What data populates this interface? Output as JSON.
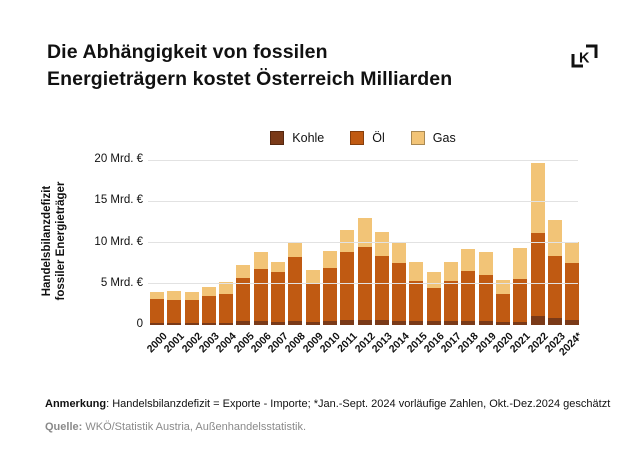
{
  "header": {
    "title_line1": "Die Abhängigkeit von fossilen",
    "title_line2": "Energieträgern kostet Österreich Milliarden",
    "logo_icon": "k-frame-logo",
    "logo_letter": "K"
  },
  "colors": {
    "kohle": "#7a3a18",
    "oel": "#c05a12",
    "gas": "#f2c477",
    "grid": "#e2e2e2",
    "text": "#111111",
    "muted": "#8a8a8a"
  },
  "chart_data": {
    "type": "bar",
    "stacked": true,
    "legend_position": "top",
    "grid": true,
    "unit": "Mrd. €",
    "ylim": [
      0,
      20
    ],
    "ylabel_line1": "Handelsbilanzdefizit",
    "ylabel_line2": "fossiler Energieträger",
    "categories": [
      "2000",
      "2001",
      "2002",
      "2003",
      "2004",
      "2005",
      "2006",
      "2007",
      "2008",
      "2009",
      "2010",
      "2011",
      "2012",
      "2013",
      "2014",
      "2015",
      "2016",
      "2017",
      "2018",
      "2019",
      "2020",
      "2021",
      "2022",
      "2023",
      "2024*"
    ],
    "series": [
      {
        "name": "Kohle",
        "color_key": "kohle",
        "values": [
          0.25,
          0.25,
          0.25,
          0.3,
          0.3,
          0.45,
          0.45,
          0.4,
          0.55,
          0.35,
          0.5,
          0.6,
          0.65,
          0.6,
          0.55,
          0.5,
          0.5,
          0.5,
          0.55,
          0.5,
          0.35,
          0.4,
          1.15,
          0.85,
          0.6
        ]
      },
      {
        "name": "Öl",
        "color_key": "oel",
        "values": [
          2.85,
          2.75,
          2.75,
          3.2,
          3.5,
          5.25,
          6.4,
          6.0,
          7.65,
          4.75,
          6.4,
          8.3,
          8.75,
          7.8,
          6.95,
          4.8,
          3.95,
          4.85,
          6.05,
          5.6,
          3.45,
          5.2,
          10.0,
          7.5,
          6.9
        ]
      },
      {
        "name": "Gas",
        "color_key": "gas",
        "values": [
          0.9,
          1.1,
          1.0,
          1.1,
          1.4,
          1.6,
          1.95,
          1.3,
          1.7,
          1.6,
          2.1,
          2.6,
          3.6,
          2.9,
          2.4,
          2.3,
          1.95,
          2.35,
          2.6,
          2.8,
          1.6,
          3.8,
          8.5,
          4.4,
          2.6
        ]
      }
    ],
    "yticks": [
      {
        "value": 20,
        "label": "20 Mrd. €"
      },
      {
        "value": 15,
        "label": "15 Mrd. €"
      },
      {
        "value": 10,
        "label": "10 Mrd. €"
      },
      {
        "value": 5,
        "label": "5 Mrd. €"
      },
      {
        "value": 0,
        "label": "0"
      }
    ]
  },
  "footer": {
    "note_label": "Anmerkung",
    "note_text": ": Handelsbilanzdefizit = Exporte - Importe;  *Jan.-Sept. 2024 vorläufige Zahlen, Okt.-Dez.2024 geschätzt",
    "source_label": "Quelle:",
    "source_text": " WKÖ/Statistik Austria, Außenhandelsstatistik."
  }
}
